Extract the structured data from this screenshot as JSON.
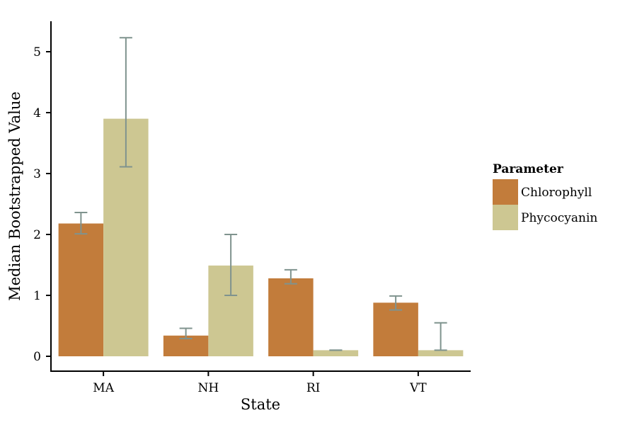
{
  "chart_data": {
    "type": "bar",
    "xlabel": "State",
    "ylabel": "Median Bootstrapped Value",
    "categories": [
      "MA",
      "NH",
      "RI",
      "VT"
    ],
    "ylim": [
      -0.25,
      5.45
    ],
    "yticks": [
      0,
      1,
      2,
      3,
      4,
      5
    ],
    "grid": false,
    "legend": {
      "title": "Parameter",
      "placement": "right"
    },
    "series": [
      {
        "name": "Chlorophyll",
        "color": "#c27c3b",
        "values": [
          2.18,
          0.34,
          1.28,
          0.88
        ],
        "error_low": [
          2.01,
          0.29,
          1.19,
          0.76
        ],
        "error_high": [
          2.36,
          0.46,
          1.42,
          0.99
        ]
      },
      {
        "name": "Phycocyanin",
        "color": "#cdc792",
        "values": [
          3.9,
          1.49,
          0.1,
          0.1
        ],
        "error_low": [
          3.11,
          1.0,
          0.1,
          0.1
        ],
        "error_high": [
          5.23,
          2.0,
          0.1,
          0.55
        ]
      }
    ],
    "error_bar_color": "#7f938e"
  }
}
